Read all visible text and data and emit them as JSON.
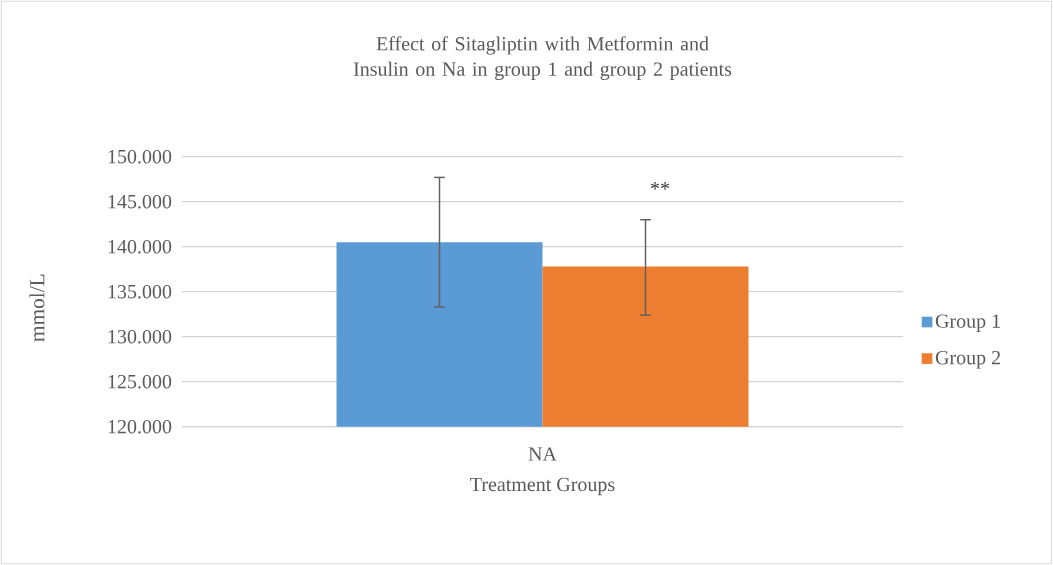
{
  "chart_data": {
    "type": "bar",
    "title": "Effect of Sitagliptin with Metformin and Insulin on Na in group 1 and group 2 patients",
    "xlabel": "Treatment Groups",
    "ylabel": "mmol/L",
    "categories": [
      "NA"
    ],
    "series": [
      {
        "name": "Group 1",
        "color": "#5b9bd5",
        "values": [
          140.5
        ],
        "errors": [
          [
            133.3,
            147.7
          ]
        ]
      },
      {
        "name": "Group 2",
        "color": "#ed7d31",
        "values": [
          137.8
        ],
        "errors": [
          [
            132.4,
            143.0
          ]
        ]
      }
    ],
    "ylim": [
      120,
      150
    ],
    "yticks": [
      {
        "value": 120,
        "label": "120.000"
      },
      {
        "value": 125,
        "label": "125.000"
      },
      {
        "value": 130,
        "label": "130.000"
      },
      {
        "value": 135,
        "label": "135.000"
      },
      {
        "value": 140,
        "label": "140.000"
      },
      {
        "value": 145,
        "label": "145.000"
      },
      {
        "value": 150,
        "label": "150.000"
      }
    ],
    "grid": "y",
    "legend": "right",
    "annotations": [
      "**"
    ]
  }
}
